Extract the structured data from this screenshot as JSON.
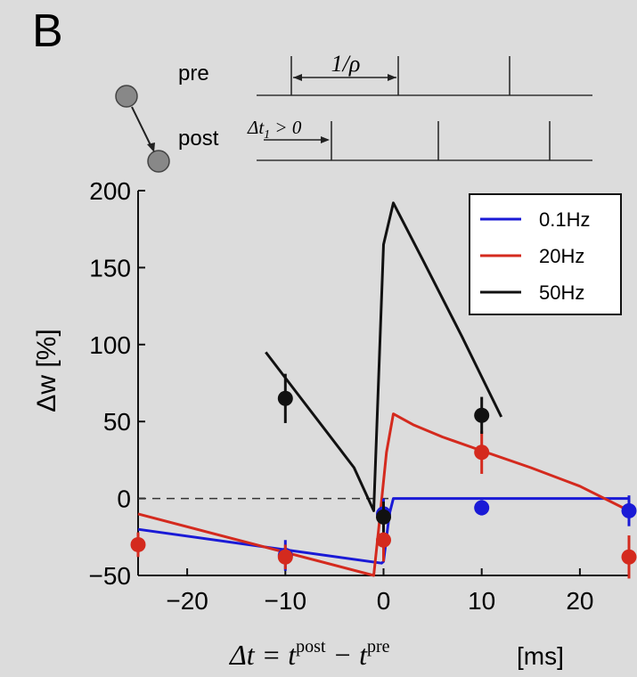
{
  "panel_label": "B",
  "schematic": {
    "pre_label": "pre",
    "post_label": "post",
    "interval_label": "1/ρ",
    "delta_label": "Δt",
    "delta_sub": "1",
    "delta_rel": " > 0",
    "neuron_color": "#888888"
  },
  "chart_data": {
    "type": "line",
    "title": "",
    "xlabel_main": "Δt = t",
    "xlabel_sup1": "post",
    "xlabel_mid": " − t",
    "xlabel_sup2": "pre",
    "xlabel_units": "[ms]",
    "ylabel": "Δw [%]",
    "xlim": [
      -25,
      25
    ],
    "ylim": [
      -50,
      200
    ],
    "xticks": [
      -20,
      -10,
      0,
      10,
      20
    ],
    "yticks": [
      -50,
      0,
      50,
      100,
      150,
      200
    ],
    "xtick_labels": [
      "−20",
      "−10",
      "0",
      "10",
      "20"
    ],
    "ytick_labels": [
      "−50",
      "0",
      "50",
      "100",
      "150",
      "200"
    ],
    "zero_line": "dashed",
    "legend_position": "top-right",
    "series": [
      {
        "name": "0.1Hz",
        "color": "#1a1ad6",
        "line": [
          [
            -25,
            -20
          ],
          [
            -0.2,
            -42
          ],
          [
            0,
            -41
          ],
          [
            0.6,
            -10
          ],
          [
            1,
            0
          ],
          [
            25,
            0
          ]
        ],
        "points": [
          {
            "x": -10,
            "y": -37,
            "err": 10
          },
          {
            "x": 0,
            "y": -10,
            "err": 10
          },
          {
            "x": 10,
            "y": -6,
            "err": 5
          },
          {
            "x": 25,
            "y": -8,
            "err": 10
          }
        ]
      },
      {
        "name": "20Hz",
        "color": "#d42a1e",
        "line": [
          [
            -25,
            -10
          ],
          [
            -1,
            -50
          ],
          [
            -0.5,
            -20
          ],
          [
            0.3,
            30
          ],
          [
            1,
            55
          ],
          [
            3,
            48
          ],
          [
            6,
            40
          ],
          [
            10,
            31
          ],
          [
            15,
            20
          ],
          [
            20,
            8
          ],
          [
            25,
            -8
          ]
        ],
        "points": [
          {
            "x": -25,
            "y": -30,
            "err": 8
          },
          {
            "x": -10,
            "y": -38,
            "err": 8
          },
          {
            "x": 0,
            "y": -27,
            "err": 14
          },
          {
            "x": 10,
            "y": 30,
            "err": 14
          },
          {
            "x": 25,
            "y": -38,
            "err": 14
          }
        ]
      },
      {
        "name": "50Hz",
        "color": "#111111",
        "line": [
          [
            -12,
            95
          ],
          [
            -9,
            70
          ],
          [
            -6,
            45
          ],
          [
            -3,
            20
          ],
          [
            -1,
            -8
          ],
          [
            0,
            165
          ],
          [
            1,
            192
          ],
          [
            4,
            155
          ],
          [
            8,
            105
          ],
          [
            12,
            53
          ]
        ],
        "points": [
          {
            "x": -10,
            "y": 65,
            "err": 16
          },
          {
            "x": 0,
            "y": -12,
            "err": 10
          },
          {
            "x": 10,
            "y": 54,
            "err": 12
          }
        ]
      }
    ]
  }
}
